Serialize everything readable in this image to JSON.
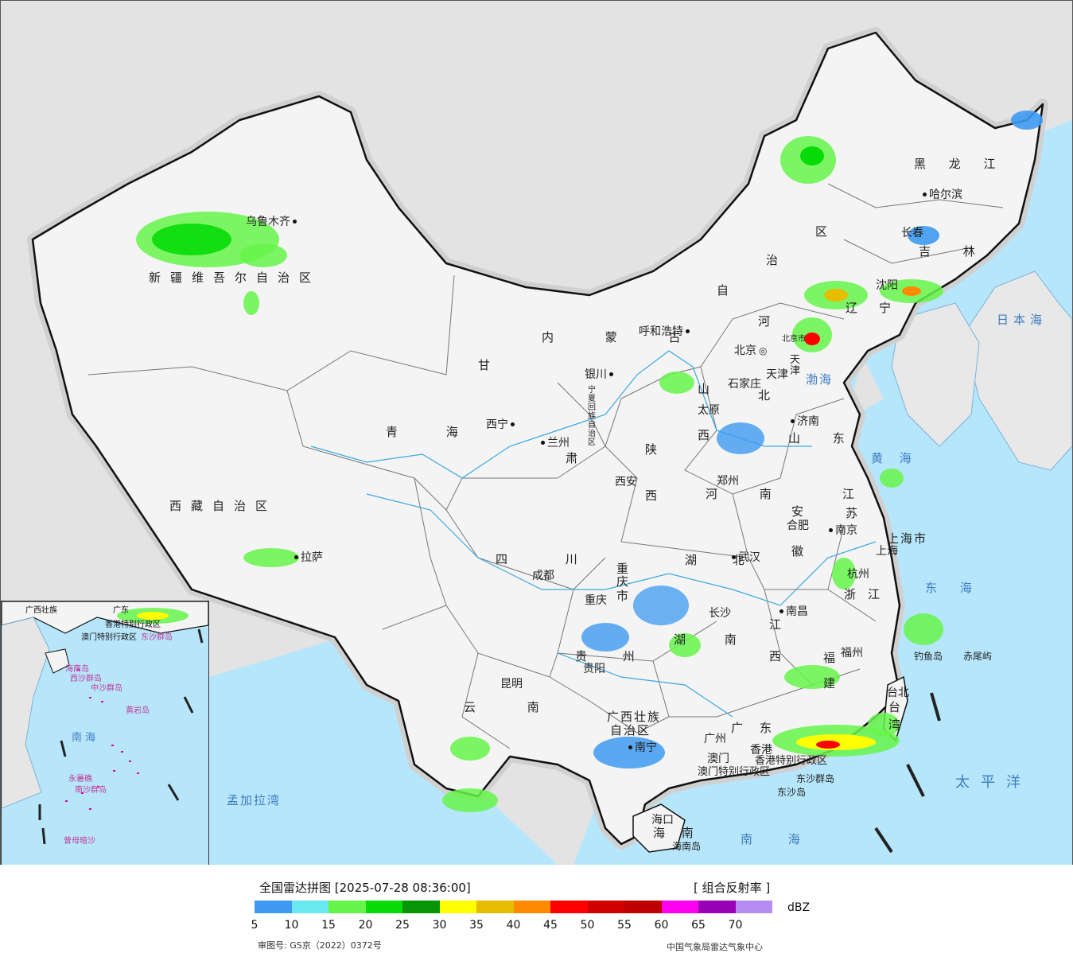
{
  "map": {
    "labels": {
      "provinces": [
        {
          "id": "xinjiang",
          "text": "新疆维吾尔自治区"
        },
        {
          "id": "xizang",
          "text": "西藏自治区"
        },
        {
          "id": "qinghai",
          "text": "青 海"
        },
        {
          "id": "gansu",
          "text": "甘"
        },
        {
          "id": "gansu2",
          "text": "肃"
        },
        {
          "id": "neimenggu",
          "text": "内 蒙 古"
        },
        {
          "id": "neimenggu2",
          "text": "自"
        },
        {
          "id": "neimenggu3",
          "text": "治"
        },
        {
          "id": "neimenggu4",
          "text": "区"
        },
        {
          "id": "heilongjiang",
          "text": "黑 龙 江"
        },
        {
          "id": "jilin",
          "text": "吉 林"
        },
        {
          "id": "liaoning",
          "text": "辽"
        },
        {
          "id": "liaoning2",
          "text": "宁"
        },
        {
          "id": "hebei",
          "text": "河"
        },
        {
          "id": "hebei2",
          "text": "北"
        },
        {
          "id": "shanxi",
          "text": "山"
        },
        {
          "id": "shanxi2",
          "text": "西"
        },
        {
          "id": "shaanxi",
          "text": "陕"
        },
        {
          "id": "shaanxi2",
          "text": "西"
        },
        {
          "id": "ningxia",
          "text": "宁夏回族自治区"
        },
        {
          "id": "shandong",
          "text": "山 东"
        },
        {
          "id": "henan",
          "text": "河 南"
        },
        {
          "id": "jiangsu",
          "text": "江"
        },
        {
          "id": "jiangsu2",
          "text": "苏"
        },
        {
          "id": "anhui",
          "text": "安"
        },
        {
          "id": "anhui2",
          "text": "徽"
        },
        {
          "id": "hubei",
          "text": "湖 北"
        },
        {
          "id": "sichuan",
          "text": "四 川"
        },
        {
          "id": "chongqing",
          "text": "重"
        },
        {
          "id": "chongqing2",
          "text": "庆"
        },
        {
          "id": "chongqing3",
          "text": "市"
        },
        {
          "id": "hunan",
          "text": "湖 南"
        },
        {
          "id": "jiangxi",
          "text": "江"
        },
        {
          "id": "jiangxi2",
          "text": "西"
        },
        {
          "id": "zhejiang",
          "text": "浙"
        },
        {
          "id": "zhejiang2",
          "text": "江"
        },
        {
          "id": "fujian",
          "text": "福"
        },
        {
          "id": "fujian2",
          "text": "建"
        },
        {
          "id": "guizhou",
          "text": "贵 州"
        },
        {
          "id": "yunnan",
          "text": "云 南"
        },
        {
          "id": "guangxi",
          "text": "广西壮族"
        },
        {
          "id": "guangxi2",
          "text": "自治区"
        },
        {
          "id": "guangdong",
          "text": "广"
        },
        {
          "id": "guangdong2",
          "text": "东"
        },
        {
          "id": "hainan",
          "text": "海 南"
        },
        {
          "id": "taiwan",
          "text": "台"
        },
        {
          "id": "taiwan2",
          "text": "湾"
        },
        {
          "id": "shanghai",
          "text": "上海市"
        },
        {
          "id": "tianjin",
          "text": "天"
        },
        {
          "id": "tianjin2",
          "text": "津"
        },
        {
          "id": "beijing",
          "text": "北京市"
        },
        {
          "id": "hongkong",
          "text": "香港特别行政区"
        },
        {
          "id": "macau",
          "text": "澳门特别行政区"
        }
      ],
      "cities": [
        {
          "id": "urumqi",
          "text": "乌鲁木齐"
        },
        {
          "id": "lhasa",
          "text": "拉萨"
        },
        {
          "id": "xining",
          "text": "西宁"
        },
        {
          "id": "lanzhou",
          "text": "兰州"
        },
        {
          "id": "yinchuan",
          "text": "银川"
        },
        {
          "id": "hohhot",
          "text": "呼和浩特"
        },
        {
          "id": "harbin",
          "text": "哈尔滨"
        },
        {
          "id": "changchun",
          "text": "长春"
        },
        {
          "id": "shenyang",
          "text": "沈阳"
        },
        {
          "id": "beijing",
          "text": "北京"
        },
        {
          "id": "tianjin",
          "text": "天津"
        },
        {
          "id": "shijiazhuang",
          "text": "石家庄"
        },
        {
          "id": "taiyuan",
          "text": "太原"
        },
        {
          "id": "jinan",
          "text": "济南"
        },
        {
          "id": "xian",
          "text": "西安"
        },
        {
          "id": "zhengzhou",
          "text": "郑州"
        },
        {
          "id": "hefei",
          "text": "合肥"
        },
        {
          "id": "nanjing",
          "text": "南京"
        },
        {
          "id": "shanghai",
          "text": "上海"
        },
        {
          "id": "hangzhou",
          "text": "杭州"
        },
        {
          "id": "wuhan",
          "text": "武汉"
        },
        {
          "id": "chengdu",
          "text": "成都"
        },
        {
          "id": "chongqing",
          "text": "重庆"
        },
        {
          "id": "changsha",
          "text": "长沙"
        },
        {
          "id": "nanchang",
          "text": "南昌"
        },
        {
          "id": "fuzhou",
          "text": "福州"
        },
        {
          "id": "guiyang",
          "text": "贵阳"
        },
        {
          "id": "kunming",
          "text": "昆明"
        },
        {
          "id": "nanning",
          "text": "南宁"
        },
        {
          "id": "guangzhou",
          "text": "广州"
        },
        {
          "id": "hongkong",
          "text": "香港"
        },
        {
          "id": "macau",
          "text": "澳门"
        },
        {
          "id": "haikou",
          "text": "海口"
        },
        {
          "id": "taipei",
          "text": "台北"
        }
      ],
      "seas": [
        {
          "id": "riben",
          "text": "日本海"
        },
        {
          "id": "bohai",
          "text": "渤海"
        },
        {
          "id": "huanghai",
          "text": "黄 海"
        },
        {
          "id": "donghai",
          "text": "东 海"
        },
        {
          "id": "taipingyang",
          "text": "太平洋"
        },
        {
          "id": "nanhai",
          "text": "南 海"
        },
        {
          "id": "mengjiala",
          "text": "孟加拉湾"
        }
      ],
      "islands": [
        {
          "id": "diaoyu",
          "text": "钓鱼岛"
        },
        {
          "id": "chiwei",
          "text": "赤尾屿"
        },
        {
          "id": "dongsha_qundao",
          "text": "东沙群岛"
        },
        {
          "id": "dongsha_dao",
          "text": "东沙岛"
        },
        {
          "id": "hainan_dao",
          "text": "海南岛"
        }
      ],
      "inset": [
        {
          "id": "gx",
          "text": "广西壮族"
        },
        {
          "id": "gd",
          "text": "广东"
        },
        {
          "id": "hk",
          "text": "香港特别行政区"
        },
        {
          "id": "mo",
          "text": "澳门特别行政区"
        },
        {
          "id": "dsqd",
          "text": "东沙群岛"
        },
        {
          "id": "hnd",
          "text": "海南岛"
        },
        {
          "id": "xsqd",
          "text": "西沙群岛"
        },
        {
          "id": "zsqd",
          "text": "中沙群岛"
        },
        {
          "id": "hyd",
          "text": "黄岩岛"
        },
        {
          "id": "nh",
          "text": "南 海"
        },
        {
          "id": "nsqd",
          "text": "南沙群岛"
        },
        {
          "id": "yst",
          "text": "永暑礁"
        },
        {
          "id": "zma",
          "text": "曾母暗沙"
        }
      ]
    }
  },
  "legend": {
    "title": "全国雷达拼图 [2025-07-28 08:36:00]",
    "product": "[ 组合反射率 ]",
    "unit": "dBZ",
    "ticks": [
      "5",
      "10",
      "15",
      "20",
      "25",
      "30",
      "35",
      "40",
      "45",
      "50",
      "55",
      "60",
      "65",
      "70"
    ],
    "colors": [
      "#3e9af0",
      "#6be9f0",
      "#66f44a",
      "#08dc08",
      "#079407",
      "#fefe00",
      "#e6bd00",
      "#ff8a00",
      "#fe0000",
      "#d00000",
      "#be0000",
      "#ff00f0",
      "#9a00b6",
      "#b58cef"
    ],
    "review_number": "审图号: GS京（2022）0372号",
    "credit": "中国气象局雷达气象中心"
  }
}
